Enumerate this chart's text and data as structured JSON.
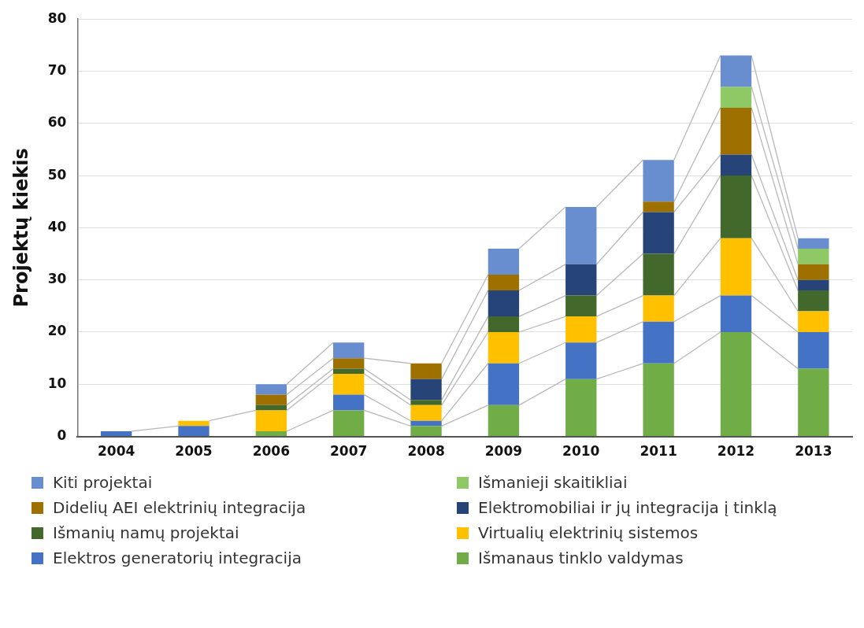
{
  "chart_data": {
    "type": "bar",
    "ylabel": "Projektų kiekis",
    "stacked": true,
    "grid": "y",
    "legend": "bottom",
    "categories": [
      "2004",
      "2005",
      "2006",
      "2007",
      "2008",
      "2009",
      "2010",
      "2011",
      "2012",
      "2013"
    ],
    "ylim": [
      0,
      80
    ],
    "yticks": [
      0,
      10,
      20,
      30,
      40,
      50,
      60,
      70,
      80
    ],
    "series": [
      {
        "name": "Išmanaus tinklo valdymas",
        "color": "#70ad47",
        "values": [
          0,
          0,
          1,
          5,
          2,
          6,
          11,
          14,
          20,
          13
        ]
      },
      {
        "name": "Elektros generatorių integracija",
        "color": "#4472c4",
        "values": [
          1,
          2,
          0,
          3,
          1,
          8,
          7,
          8,
          7,
          7
        ]
      },
      {
        "name": "Virtualių elektrinių sistemos",
        "color": "#ffc000",
        "values": [
          0,
          1,
          4,
          4,
          3,
          6,
          5,
          5,
          11,
          4
        ]
      },
      {
        "name": "Išmanių namų projektai",
        "color": "#43682b",
        "values": [
          0,
          0,
          1,
          1,
          1,
          3,
          4,
          8,
          12,
          4
        ]
      },
      {
        "name": "Elektromobiliai ir jų integracija į tinklą",
        "color": "#264478",
        "values": [
          0,
          0,
          0,
          0,
          4,
          5,
          6,
          8,
          4,
          2
        ]
      },
      {
        "name": "Didelių AEI elektrinių integracija",
        "color": "#9e7000",
        "values": [
          0,
          0,
          2,
          2,
          3,
          3,
          0,
          2,
          9,
          3
        ]
      },
      {
        "name": "Išmanieji skaitikliai",
        "color": "#8fc965",
        "values": [
          0,
          0,
          0,
          0,
          0,
          0,
          0,
          0,
          4,
          3
        ]
      },
      {
        "name": "Kiti projektai",
        "color": "#698ed0",
        "values": [
          0,
          0,
          2,
          3,
          0,
          5,
          11,
          8,
          6,
          2
        ]
      }
    ]
  }
}
